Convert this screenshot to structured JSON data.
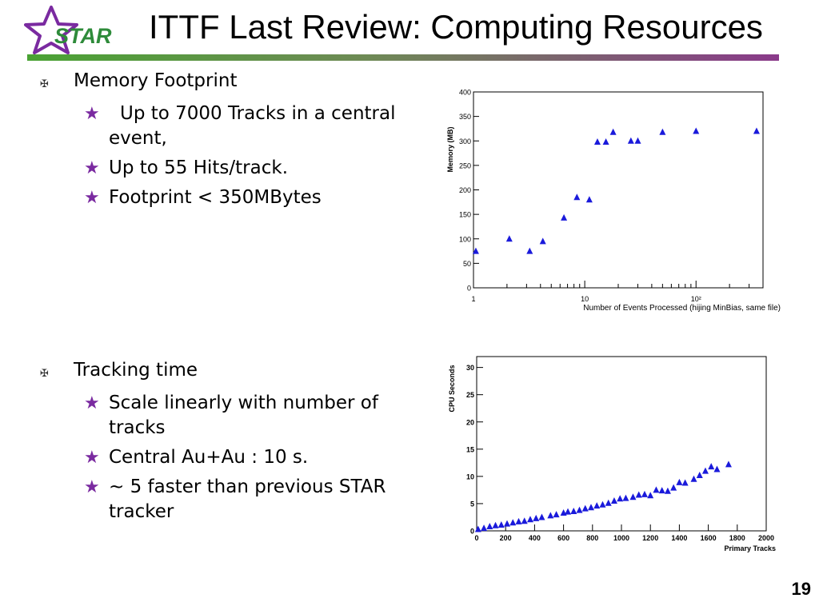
{
  "slide": {
    "title": "ITTF Last Review: Computing Resources",
    "logo_text": "STAR",
    "page_number": "19",
    "colors": {
      "logo_star": "#7a2aa0",
      "logo_text": "#2e8b3a",
      "bullet_star": "#7a2aa0",
      "marker": "#1a1adb"
    }
  },
  "section_memory": {
    "heading": "Memory Footprint",
    "items": [
      "Up to 7000 Tracks in a central event,",
      "Up to 55 Hits/track.",
      "Footprint < 350MBytes"
    ]
  },
  "section_tracking": {
    "heading": "Tracking time",
    "items": [
      "Scale linearly with number of tracks",
      "Central Au+Au :  10 s.",
      "~ 5 faster than previous STAR tracker"
    ]
  },
  "chart_data": [
    {
      "type": "scatter",
      "xlabel": "Number of Events Processed (hijing MinBias, same file)",
      "ylabel": "Memory (MB)",
      "xscale": "log",
      "xlim": [
        1,
        400
      ],
      "ylim": [
        0,
        400
      ],
      "yticks": [
        0,
        50,
        100,
        150,
        200,
        250,
        300,
        350,
        400
      ],
      "xtick_labels": [
        "1",
        "10",
        "10²"
      ],
      "marker_color": "#1a1adb",
      "x": [
        1.05,
        2.1,
        3.2,
        4.2,
        6.5,
        8.5,
        11,
        13,
        15.5,
        18,
        26,
        30,
        50,
        100,
        350
      ],
      "y": [
        75,
        100,
        75,
        95,
        143,
        185,
        180,
        298,
        298,
        318,
        300,
        300,
        318,
        320,
        320
      ]
    },
    {
      "type": "scatter",
      "xlabel": "Primary Tracks",
      "ylabel": "CPU Seconds",
      "xlim": [
        0,
        2000
      ],
      "ylim": [
        0,
        32
      ],
      "xticks": [
        0,
        200,
        400,
        600,
        800,
        1000,
        1200,
        1400,
        1600,
        1800,
        2000
      ],
      "yticks": [
        0,
        5,
        10,
        15,
        20,
        25,
        30
      ],
      "marker_color": "#1a1adb",
      "x": [
        10,
        50,
        90,
        130,
        170,
        210,
        250,
        290,
        330,
        370,
        410,
        450,
        510,
        550,
        600,
        630,
        670,
        710,
        750,
        790,
        830,
        870,
        910,
        950,
        990,
        1030,
        1080,
        1120,
        1160,
        1200,
        1240,
        1280,
        1320,
        1360,
        1400,
        1440,
        1500,
        1540,
        1580,
        1620,
        1660,
        1740
      ],
      "y": [
        0.3,
        0.5,
        0.8,
        1.0,
        1.1,
        1.3,
        1.5,
        1.7,
        1.8,
        2.1,
        2.3,
        2.5,
        2.8,
        3.0,
        3.3,
        3.5,
        3.6,
        3.8,
        4.1,
        4.3,
        4.6,
        4.8,
        5.1,
        5.5,
        5.9,
        6.0,
        6.2,
        6.6,
        6.7,
        6.5,
        7.5,
        7.4,
        7.3,
        7.9,
        8.9,
        8.8,
        9.5,
        10.2,
        11.0,
        11.8,
        11.3,
        12.2
      ]
    }
  ]
}
